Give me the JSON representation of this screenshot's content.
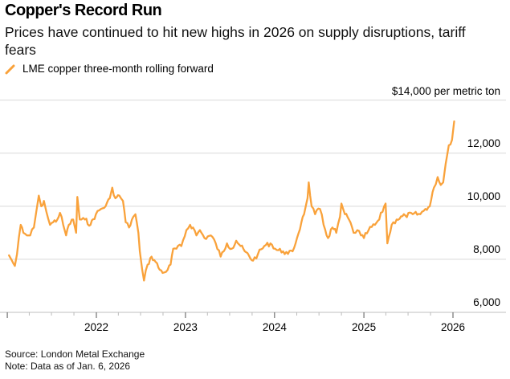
{
  "header": {
    "title": "Copper's Record Run",
    "subtitle": "Prices have continued to hit new highs in 2026 on supply disruptions, tariff fears"
  },
  "footer": {
    "source": "Source: London Metal Exchange",
    "note": "Note: Data as of Jan. 6, 2026"
  },
  "colors": {
    "series": "#F9A23B",
    "grid": "#D9D9D9",
    "axis": "#BFBFBF"
  },
  "chart_data": {
    "type": "line",
    "title": "Copper's Record Run",
    "subtitle": "Prices have continued to hit new highs in 2026 on supply disruptions, tariff fears",
    "xlabel": "",
    "ylabel": "$ per metric ton",
    "unit_label": "$14,000 per metric ton",
    "ylim": [
      6000,
      14000
    ],
    "xlim": [
      "2021-01-01",
      "2026-01-06"
    ],
    "y_ticks": [
      6000,
      8000,
      10000,
      12000,
      14000
    ],
    "y_tick_labels": [
      "6,000",
      "8,000",
      "10,000",
      "12,000",
      "$14,000 per metric ton"
    ],
    "x_ticks": [
      "2022",
      "2023",
      "2024",
      "2025",
      "2026"
    ],
    "grid": "horizontal",
    "legend": {
      "placement": "top-left",
      "entries": [
        "LME copper three-month rolling forward"
      ]
    },
    "series": [
      {
        "name": "LME copper three-month rolling forward",
        "points": [
          [
            "2021-01-08",
            8150
          ],
          [
            "2021-01-20",
            7950
          ],
          [
            "2021-02-01",
            7750
          ],
          [
            "2021-02-10",
            8200
          ],
          [
            "2021-02-25",
            9300
          ],
          [
            "2021-03-08",
            9000
          ],
          [
            "2021-03-22",
            8900
          ],
          [
            "2021-04-05",
            8900
          ],
          [
            "2021-04-20",
            9200
          ],
          [
            "2021-04-30",
            9800
          ],
          [
            "2021-05-10",
            10400
          ],
          [
            "2021-05-20",
            10000
          ],
          [
            "2021-05-31",
            10200
          ],
          [
            "2021-06-10",
            9800
          ],
          [
            "2021-06-25",
            9300
          ],
          [
            "2021-07-08",
            9400
          ],
          [
            "2021-07-25",
            9500
          ],
          [
            "2021-08-05",
            9750
          ],
          [
            "2021-08-18",
            9300
          ],
          [
            "2021-08-30",
            8900
          ],
          [
            "2021-09-10",
            9300
          ],
          [
            "2021-09-28",
            9500
          ],
          [
            "2021-10-10",
            9000
          ],
          [
            "2021-10-15",
            10350
          ],
          [
            "2021-10-25",
            9500
          ],
          [
            "2021-11-15",
            9500
          ],
          [
            "2021-12-08",
            9300
          ],
          [
            "2021-12-30",
            9700
          ],
          [
            "2022-01-20",
            9900
          ],
          [
            "2022-02-08",
            10000
          ],
          [
            "2022-02-25",
            10300
          ],
          [
            "2022-03-07",
            10700
          ],
          [
            "2022-03-20",
            10300
          ],
          [
            "2022-04-05",
            10400
          ],
          [
            "2022-04-20",
            10200
          ],
          [
            "2022-05-01",
            9400
          ],
          [
            "2022-05-15",
            9200
          ],
          [
            "2022-06-01",
            9600
          ],
          [
            "2022-06-10",
            9700
          ],
          [
            "2022-06-22",
            9000
          ],
          [
            "2022-06-28",
            8300
          ],
          [
            "2022-07-08",
            7600
          ],
          [
            "2022-07-15",
            7200
          ],
          [
            "2022-07-30",
            7800
          ],
          [
            "2022-08-15",
            8100
          ],
          [
            "2022-09-01",
            7900
          ],
          [
            "2022-09-18",
            7600
          ],
          [
            "2022-10-05",
            7500
          ],
          [
            "2022-10-20",
            7600
          ],
          [
            "2022-11-01",
            7800
          ],
          [
            "2022-11-12",
            8400
          ],
          [
            "2022-11-25",
            8400
          ],
          [
            "2022-12-15",
            8500
          ],
          [
            "2023-01-05",
            9100
          ],
          [
            "2023-01-20",
            9300
          ],
          [
            "2023-02-01",
            9200
          ],
          [
            "2023-02-15",
            8900
          ],
          [
            "2023-03-01",
            9100
          ],
          [
            "2023-03-20",
            8800
          ],
          [
            "2023-04-15",
            8900
          ],
          [
            "2023-05-05",
            8600
          ],
          [
            "2023-05-25",
            8100
          ],
          [
            "2023-06-20",
            8600
          ],
          [
            "2023-07-10",
            8400
          ],
          [
            "2023-07-28",
            8700
          ],
          [
            "2023-08-15",
            8500
          ],
          [
            "2023-09-01",
            8300
          ],
          [
            "2023-10-05",
            7950
          ],
          [
            "2023-10-25",
            8200
          ],
          [
            "2023-11-20",
            8500
          ],
          [
            "2023-12-15",
            8600
          ],
          [
            "2024-01-10",
            8350
          ],
          [
            "2024-02-05",
            8300
          ],
          [
            "2024-02-25",
            8200
          ],
          [
            "2024-03-15",
            8300
          ],
          [
            "2024-04-02",
            8800
          ],
          [
            "2024-04-20",
            9400
          ],
          [
            "2024-05-01",
            9700
          ],
          [
            "2024-05-10",
            10100
          ],
          [
            "2024-05-15",
            10300
          ],
          [
            "2024-05-20",
            10900
          ],
          [
            "2024-06-01",
            10000
          ],
          [
            "2024-06-15",
            9700
          ],
          [
            "2024-07-05",
            9900
          ],
          [
            "2024-07-20",
            9300
          ],
          [
            "2024-08-07",
            8800
          ],
          [
            "2024-08-25",
            9200
          ],
          [
            "2024-09-10",
            9000
          ],
          [
            "2024-09-25",
            9600
          ],
          [
            "2024-10-01",
            10100
          ],
          [
            "2024-10-15",
            9700
          ],
          [
            "2024-11-01",
            9500
          ],
          [
            "2024-11-20",
            9000
          ],
          [
            "2024-12-05",
            9100
          ],
          [
            "2024-12-20",
            8900
          ],
          [
            "2025-01-01",
            8800
          ],
          [
            "2025-01-20",
            9100
          ],
          [
            "2025-02-15",
            9300
          ],
          [
            "2025-03-05",
            9500
          ],
          [
            "2025-03-25",
            10000
          ],
          [
            "2025-03-31",
            10100
          ],
          [
            "2025-04-07",
            8600
          ],
          [
            "2025-04-25",
            9300
          ],
          [
            "2025-05-15",
            9500
          ],
          [
            "2025-06-20",
            9650
          ],
          [
            "2025-07-20",
            9700
          ],
          [
            "2025-08-20",
            9700
          ],
          [
            "2025-09-10",
            9900
          ],
          [
            "2025-09-28",
            10000
          ],
          [
            "2025-10-15",
            10700
          ],
          [
            "2025-10-30",
            11100
          ],
          [
            "2025-11-12",
            10800
          ],
          [
            "2025-11-22",
            10900
          ],
          [
            "2025-12-02",
            11600
          ],
          [
            "2025-12-15",
            12300
          ],
          [
            "2025-12-28",
            12500
          ],
          [
            "2026-01-06",
            13200
          ]
        ]
      }
    ]
  }
}
